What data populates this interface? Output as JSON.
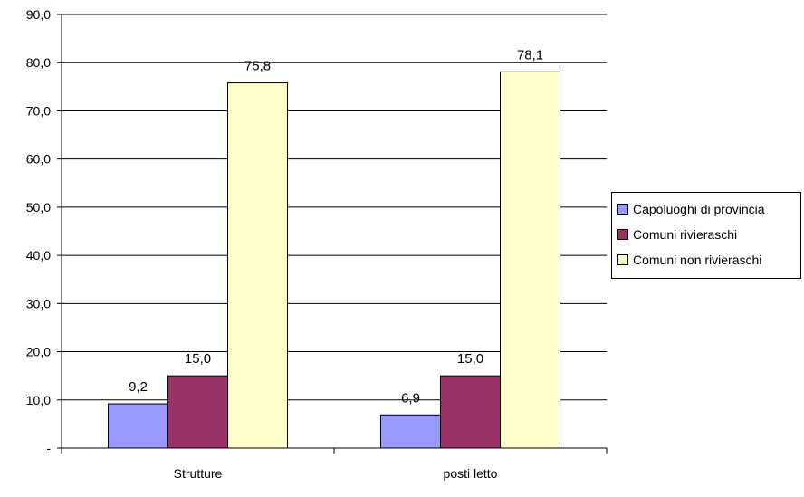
{
  "chart_data": {
    "type": "bar",
    "categories": [
      "Strutture",
      "posti letto"
    ],
    "series": [
      {
        "name": "Capoluoghi di provincia",
        "values": [
          9.2,
          6.9
        ],
        "color": "#9999ff",
        "labels": [
          "9,2",
          "6,9"
        ]
      },
      {
        "name": "Comuni rivieraschi",
        "values": [
          15.0,
          15.0
        ],
        "color": "#993366",
        "labels": [
          "15,0",
          "15,0"
        ]
      },
      {
        "name": "Comuni non rivieraschi",
        "values": [
          75.8,
          78.1
        ],
        "color": "#ffffcc",
        "labels": [
          "75,8",
          "78,1"
        ]
      }
    ],
    "y_ticks": [
      0,
      10,
      20,
      30,
      40,
      50,
      60,
      70,
      80,
      90
    ],
    "y_tick_labels": [
      "-",
      "10,0",
      "20,0",
      "30,0",
      "40,0",
      "50,0",
      "60,0",
      "70,0",
      "80,0",
      "90,0"
    ],
    "ylim": [
      0,
      90
    ],
    "grid": true,
    "legend_position": "right"
  }
}
